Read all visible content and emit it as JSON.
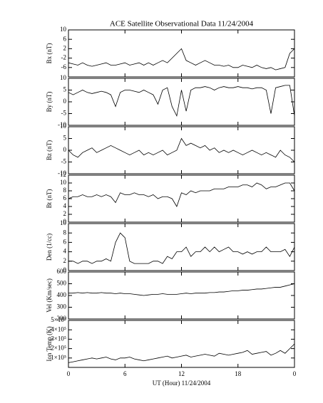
{
  "chart_data": [
    {
      "type": "line",
      "title": "ACE Satellite Observational Data   11/24/2004",
      "ylabel": "Bx (nT)",
      "color": "#000000",
      "x": [
        0,
        0.5,
        1,
        1.5,
        2,
        2.5,
        3,
        3.5,
        4,
        4.5,
        5,
        5.5,
        6,
        6.5,
        7,
        7.5,
        8,
        8.5,
        9,
        9.5,
        10,
        10.5,
        11,
        11.5,
        12,
        12.5,
        13,
        13.5,
        14,
        14.5,
        15,
        15.5,
        16,
        16.5,
        17,
        17.5,
        18,
        18.5,
        19,
        19.5,
        20,
        20.5,
        21,
        21.5,
        22,
        22.5,
        23,
        23.5,
        24
      ],
      "values": [
        -4,
        -4.5,
        -5,
        -4,
        -5,
        -5.5,
        -5,
        -4.5,
        -4,
        -5,
        -5,
        -4.5,
        -4,
        -5,
        -4.5,
        -4,
        -5,
        -4,
        -5,
        -4,
        -3,
        -4,
        -2,
        0,
        2,
        -3,
        -4,
        -5,
        -4,
        -3,
        -4,
        -5,
        -5,
        -5.5,
        -5,
        -6,
        -6,
        -5,
        -5.5,
        -6,
        -5,
        -6,
        -6.5,
        -6,
        -7,
        -6.5,
        -6,
        0,
        2
      ],
      "xlim": [
        0,
        24
      ],
      "ylim": [
        -10,
        10
      ],
      "yticks": [
        -6,
        -2,
        2,
        6,
        10
      ]
    },
    {
      "type": "line",
      "ylabel": "By (nT)",
      "color": "#000000",
      "x": [
        0,
        0.5,
        1,
        1.5,
        2,
        2.5,
        3,
        3.5,
        4,
        4.5,
        5,
        5.5,
        6,
        6.5,
        7,
        7.5,
        8,
        8.5,
        9,
        9.5,
        10,
        10.5,
        11,
        11.5,
        12,
        12.5,
        13,
        13.5,
        14,
        14.5,
        15,
        15.5,
        16,
        16.5,
        17,
        17.5,
        18,
        18.5,
        19,
        19.5,
        20,
        20.5,
        21,
        21.5,
        22,
        22.5,
        23,
        23.5,
        24
      ],
      "values": [
        4,
        3,
        4,
        5,
        4,
        3.5,
        4,
        4.5,
        4,
        3,
        -2,
        4,
        5,
        5,
        4.5,
        4,
        5,
        4,
        3,
        -1,
        5,
        6,
        -2,
        -6,
        5,
        -4,
        5,
        6,
        6,
        6.5,
        6,
        5,
        6,
        6.5,
        6,
        6,
        6.5,
        6,
        6,
        5.5,
        6,
        6,
        5,
        -5,
        6,
        6.5,
        7,
        7,
        -6
      ],
      "xlim": [
        0,
        24
      ],
      "ylim": [
        -10,
        10
      ],
      "yticks": [
        -10,
        -5,
        0,
        5,
        10
      ]
    },
    {
      "type": "line",
      "ylabel": "Bz (nT)",
      "color": "#000000",
      "x": [
        0,
        0.5,
        1,
        1.5,
        2,
        2.5,
        3,
        3.5,
        4,
        4.5,
        5,
        5.5,
        6,
        6.5,
        7,
        7.5,
        8,
        8.5,
        9,
        9.5,
        10,
        10.5,
        11,
        11.5,
        12,
        12.5,
        13,
        13.5,
        14,
        14.5,
        15,
        15.5,
        16,
        16.5,
        17,
        17.5,
        18,
        18.5,
        19,
        19.5,
        20,
        20.5,
        21,
        21.5,
        22,
        22.5,
        23,
        23.5,
        24
      ],
      "values": [
        0,
        -2,
        -3,
        -1,
        0,
        1,
        -1,
        0,
        1,
        2,
        1,
        0,
        -1,
        -2,
        -1,
        0,
        -2,
        -1,
        -2,
        -1,
        0,
        -2,
        -1,
        0,
        5,
        2,
        3,
        2,
        1,
        2,
        0,
        1,
        -1,
        0,
        -1,
        0,
        -1,
        -2,
        -1,
        0,
        -1,
        -2,
        -1,
        -2,
        -3,
        0,
        -2,
        -3,
        -5
      ],
      "xlim": [
        0,
        24
      ],
      "ylim": [
        -10,
        10
      ],
      "yticks": [
        -10,
        -5,
        0,
        5,
        10
      ]
    },
    {
      "type": "line",
      "ylabel": "Bt (nT)",
      "color": "#000000",
      "x": [
        0,
        0.5,
        1,
        1.5,
        2,
        2.5,
        3,
        3.5,
        4,
        4.5,
        5,
        5.5,
        6,
        6.5,
        7,
        7.5,
        8,
        8.5,
        9,
        9.5,
        10,
        10.5,
        11,
        11.5,
        12,
        12.5,
        13,
        13.5,
        14,
        14.5,
        15,
        15.5,
        16,
        16.5,
        17,
        17.5,
        18,
        18.5,
        19,
        19.5,
        20,
        20.5,
        21,
        21.5,
        22,
        22.5,
        23,
        23.5,
        24
      ],
      "values": [
        6,
        6.5,
        6.5,
        7,
        6.5,
        6.5,
        7,
        6.5,
        7,
        6.5,
        5,
        7.5,
        7,
        7,
        7.5,
        7,
        7,
        6.5,
        7,
        6,
        6.5,
        6.5,
        6,
        4,
        7.5,
        7,
        8,
        7.5,
        8,
        8,
        8,
        8.5,
        8.5,
        8.5,
        9,
        9,
        9,
        9.5,
        9.5,
        9,
        10,
        9.5,
        8.5,
        9,
        9,
        9.5,
        10,
        10,
        8
      ],
      "xlim": [
        0,
        24
      ],
      "ylim": [
        0,
        12
      ],
      "yticks": [
        0,
        2,
        4,
        6,
        8,
        10,
        12
      ]
    },
    {
      "type": "line",
      "ylabel": "Den (1/cc)",
      "color": "#000000",
      "x": [
        0,
        0.5,
        1,
        1.5,
        2,
        2.5,
        3,
        3.5,
        4,
        4.5,
        5,
        5.5,
        6,
        6.5,
        7,
        7.5,
        8,
        8.5,
        9,
        9.5,
        10,
        10.5,
        11,
        11.5,
        12,
        12.5,
        13,
        13.5,
        14,
        14.5,
        15,
        15.5,
        16,
        16.5,
        17,
        17.5,
        18,
        18.5,
        19,
        19.5,
        20,
        20.5,
        21,
        21.5,
        22,
        22.5,
        23,
        23.5,
        24
      ],
      "values": [
        2,
        2,
        1.5,
        2,
        2,
        1.5,
        2,
        2,
        2.5,
        2,
        6,
        8,
        7,
        2,
        1.5,
        1.5,
        1.5,
        1.5,
        2,
        2,
        1.5,
        3,
        2.5,
        4,
        4,
        5,
        3,
        4,
        4,
        5,
        4,
        5,
        4,
        4.5,
        5,
        4,
        4,
        3.5,
        4,
        3.5,
        4,
        4,
        5,
        4,
        4,
        4,
        4.5,
        3,
        5
      ],
      "xlim": [
        0,
        24
      ],
      "ylim": [
        0,
        10
      ],
      "yticks": [
        0,
        2,
        4,
        6,
        8,
        10
      ]
    },
    {
      "type": "line",
      "ylabel": "Vel (Km/sec)",
      "color": "#000000",
      "x": [
        0,
        0.5,
        1,
        1.5,
        2,
        2.5,
        3,
        3.5,
        4,
        4.5,
        5,
        5.5,
        6,
        6.5,
        7,
        7.5,
        8,
        8.5,
        9,
        9.5,
        10,
        10.5,
        11,
        11.5,
        12,
        12.5,
        13,
        13.5,
        14,
        14.5,
        15,
        15.5,
        16,
        16.5,
        17,
        17.5,
        18,
        18.5,
        19,
        19.5,
        20,
        20.5,
        21,
        21.5,
        22,
        22.5,
        23,
        23.5,
        24
      ],
      "values": [
        420,
        420,
        425,
        420,
        425,
        420,
        420,
        425,
        420,
        420,
        415,
        420,
        415,
        415,
        410,
        405,
        400,
        405,
        410,
        410,
        415,
        410,
        410,
        410,
        415,
        420,
        415,
        420,
        420,
        420,
        425,
        425,
        430,
        430,
        435,
        440,
        440,
        445,
        445,
        450,
        455,
        455,
        460,
        465,
        470,
        470,
        480,
        490,
        500
      ],
      "xlim": [
        0,
        24
      ],
      "ylim": [
        200,
        600
      ],
      "yticks": [
        200,
        300,
        400,
        500,
        600
      ]
    },
    {
      "type": "line",
      "ylabel": "Ion Temp (K)",
      "color": "#000000",
      "x": [
        0,
        0.5,
        1,
        1.5,
        2,
        2.5,
        3,
        3.5,
        4,
        4.5,
        5,
        5.5,
        6,
        6.5,
        7,
        7.5,
        8,
        8.5,
        9,
        9.5,
        10,
        10.5,
        11,
        11.5,
        12,
        12.5,
        13,
        13.5,
        14,
        14.5,
        15,
        15.5,
        16,
        16.5,
        17,
        17.5,
        18,
        18.5,
        19,
        19.5,
        20,
        20.5,
        21,
        21.5,
        22,
        22.5,
        23,
        23.5,
        24
      ],
      "values": [
        50000,
        60000,
        70000,
        80000,
        90000,
        100000,
        90000,
        100000,
        110000,
        90000,
        80000,
        100000,
        100000,
        110000,
        90000,
        80000,
        70000,
        80000,
        90000,
        100000,
        110000,
        120000,
        100000,
        110000,
        120000,
        130000,
        110000,
        120000,
        130000,
        140000,
        130000,
        120000,
        150000,
        140000,
        130000,
        140000,
        150000,
        160000,
        180000,
        140000,
        150000,
        160000,
        170000,
        130000,
        150000,
        180000,
        150000,
        200000,
        250000
      ],
      "xlim": [
        0,
        24
      ],
      "ylim": [
        0,
        500000
      ],
      "yticks": [
        {
          "value": 100000,
          "label": "1×10⁵"
        },
        {
          "value": 200000,
          "label": "2×10⁵"
        },
        {
          "value": 300000,
          "label": "3×10⁵"
        },
        {
          "value": 400000,
          "label": "4×10⁵"
        },
        {
          "value": 500000,
          "label": "5×10⁵"
        }
      ],
      "xticks": [
        0,
        6,
        12,
        18,
        {
          "value": 24,
          "label": "0"
        }
      ],
      "xlabel": "UT (Hour)  11/24/2004"
    }
  ]
}
